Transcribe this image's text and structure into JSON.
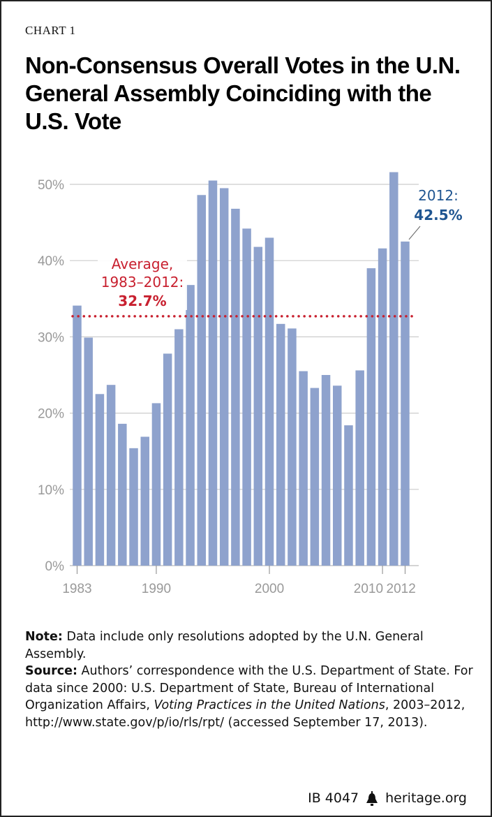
{
  "label": "CHART 1",
  "title": "Non-Consensus Overall Votes in the U.N. General Assembly Coinciding with the U.S. Vote",
  "chart_data": {
    "type": "bar",
    "categories": [
      1983,
      1984,
      1985,
      1986,
      1987,
      1988,
      1989,
      1990,
      1991,
      1992,
      1993,
      1994,
      1995,
      1996,
      1997,
      1998,
      1999,
      2000,
      2001,
      2002,
      2003,
      2004,
      2005,
      2006,
      2007,
      2008,
      2009,
      2010,
      2011,
      2012
    ],
    "values": [
      34.1,
      29.9,
      22.5,
      23.7,
      18.6,
      15.4,
      16.9,
      21.3,
      27.8,
      31.0,
      36.8,
      48.6,
      50.5,
      49.5,
      46.8,
      44.2,
      41.8,
      43.0,
      31.7,
      31.1,
      25.5,
      23.3,
      25.0,
      23.6,
      18.4,
      25.6,
      39.0,
      41.6,
      51.6,
      42.5
    ],
    "ylim": [
      0,
      50
    ],
    "yticks": [
      "0%",
      "10%",
      "20%",
      "30%",
      "40%",
      "50%"
    ],
    "xticks": [
      "1983",
      "1990",
      "2000",
      "2010",
      "2012"
    ],
    "grid": true,
    "bar_color": "#8a9fcb",
    "average": {
      "value": 32.7,
      "label_line1": "Average,",
      "label_line2": "1983–2012:",
      "label_value": "32.7%",
      "color": "#c8202f"
    },
    "callout": {
      "label": "2012:",
      "value": "42.5%",
      "color": "#1f5591"
    }
  },
  "notes": {
    "note_label": "Note:",
    "note_text": " Data include only resolutions adopted by the U.N. General Assembly.",
    "source_label": "Source:",
    "source_text1": " Authors’ correspondence with the U.S. Department of State. For data since 2000: U.S. Department of State, Bureau of International Organization Affairs, ",
    "source_italic": "Voting Practices in the United Nations",
    "source_text2": ", 2003–2012, http://www.state.gov/p/io/rls/rpt/ (accessed September 17, 2013)."
  },
  "footer": {
    "id": "IB 4047",
    "site": "heritage.org",
    "logo_icon": "liberty-bell-icon"
  }
}
